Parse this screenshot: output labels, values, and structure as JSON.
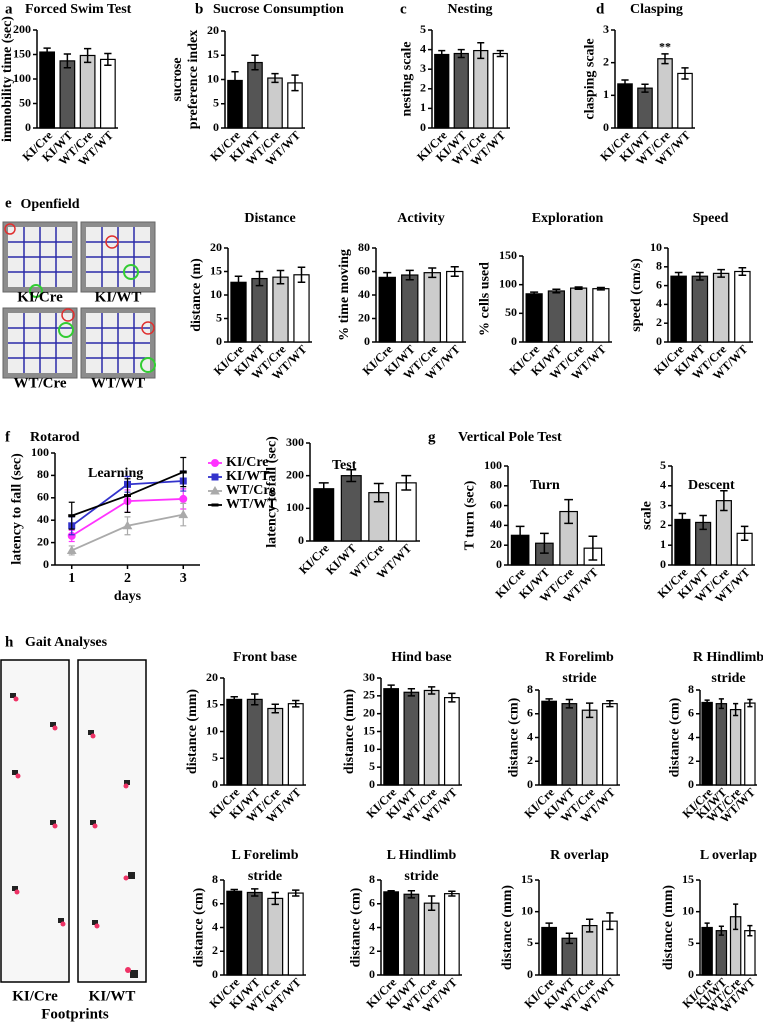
{
  "bar_colors": [
    "#000000",
    "#555555",
    "#cccccc",
    "#ffffff"
  ],
  "sections": [
    {
      "letter": "e",
      "title": "Openfield"
    },
    {
      "letter": "f",
      "title": "Rotarod"
    },
    {
      "letter": "g",
      "title": "Vertical Pole Test"
    },
    {
      "letter": "h",
      "title": "Gait Analyses"
    }
  ],
  "openfield_labels": [
    "KI/Cre",
    "KI/WT",
    "WT/Cre",
    "WT/WT"
  ],
  "footprints": {
    "labels": [
      "KI/Cre",
      "KI/WT"
    ],
    "caption": "Footprints"
  },
  "chart_data": [
    {
      "type": "bar",
      "panel": "a",
      "title": "Forced Swim Test",
      "ylabel": "immobility time (sec)",
      "categories": [
        "KI/Cre",
        "KI/WT",
        "WT/Cre",
        "WT/WT"
      ],
      "values": [
        155,
        137,
        148,
        140
      ],
      "errors": [
        8,
        14,
        14,
        12
      ],
      "ylim": [
        0,
        200
      ],
      "yticks": [
        0,
        50,
        100,
        150,
        200
      ]
    },
    {
      "type": "bar",
      "panel": "b",
      "title": "Sucrose Consumption",
      "ylabel": [
        "sucrose",
        "preference index"
      ],
      "categories": [
        "KI/Cre",
        "KI/WT",
        "WT/Cre",
        "WT/WT"
      ],
      "values": [
        9.8,
        13.5,
        10.3,
        9.3
      ],
      "errors": [
        1.8,
        1.5,
        0.9,
        1.6
      ],
      "ylim": [
        0,
        20
      ],
      "yticks": [
        0,
        5,
        10,
        15,
        20
      ]
    },
    {
      "type": "bar",
      "panel": "c",
      "title": "Nesting",
      "ylabel": "nesting scale",
      "categories": [
        "KI/Cre",
        "KI/WT",
        "WT/Cre",
        "WT/WT"
      ],
      "values": [
        3.75,
        3.8,
        3.95,
        3.8
      ],
      "errors": [
        0.2,
        0.2,
        0.4,
        0.15
      ],
      "ylim": [
        0,
        5
      ],
      "yticks": [
        0,
        1,
        2,
        3,
        4,
        5
      ]
    },
    {
      "type": "bar",
      "panel": "d",
      "title": "Clasping",
      "ylabel": "clasping scale",
      "categories": [
        "KI/Cre",
        "KI/WT",
        "WT/Cre",
        "WT/WT"
      ],
      "values": [
        1.35,
        1.22,
        2.12,
        1.67
      ],
      "errors": [
        0.12,
        0.12,
        0.15,
        0.17
      ],
      "ylim": [
        0,
        3
      ],
      "yticks": [
        0,
        1,
        2,
        3
      ],
      "annotations": [
        {
          "category": "WT/Cre",
          "text": "**"
        }
      ]
    },
    {
      "type": "bar",
      "title": "Distance",
      "ylabel": "distance (m)",
      "categories": [
        "KI/Cre",
        "KI/WT",
        "WT/Cre",
        "WT/WT"
      ],
      "values": [
        12.7,
        13.5,
        13.8,
        14.3
      ],
      "errors": [
        1.3,
        1.5,
        1.4,
        1.6
      ],
      "ylim": [
        0,
        20
      ],
      "yticks": [
        0,
        5,
        10,
        15,
        20
      ]
    },
    {
      "type": "bar",
      "title": "Activity",
      "ylabel": "% time moving",
      "categories": [
        "KI/Cre",
        "KI/WT",
        "WT/Cre",
        "WT/WT"
      ],
      "values": [
        55,
        57,
        59,
        60
      ],
      "errors": [
        4,
        4,
        4,
        4
      ],
      "ylim": [
        0,
        80
      ],
      "yticks": [
        0,
        20,
        40,
        60,
        80
      ]
    },
    {
      "type": "bar",
      "title": "Exploration",
      "ylabel": "% cells used",
      "categories": [
        "KI/Cre",
        "KI/WT",
        "WT/Cre",
        "WT/WT"
      ],
      "values": [
        84,
        89,
        94,
        93
      ],
      "errors": [
        3,
        3,
        2,
        2
      ],
      "ylim": [
        0,
        150
      ],
      "yticks": [
        0,
        50,
        100,
        150
      ]
    },
    {
      "type": "bar",
      "title": "Speed",
      "ylabel": "speed (cm/s)",
      "categories": [
        "KI/Cre",
        "KI/WT",
        "WT/Cre",
        "WT/WT"
      ],
      "values": [
        7,
        7,
        7.3,
        7.5
      ],
      "errors": [
        0.4,
        0.4,
        0.4,
        0.4
      ],
      "ylim": [
        0,
        10
      ],
      "yticks": [
        0,
        2,
        4,
        6,
        8,
        10
      ]
    },
    {
      "type": "line",
      "title": "Learning",
      "ylabel": "latency to fall (sec)",
      "xlabel": "days",
      "x": [
        1,
        2,
        3
      ],
      "xlim": [
        0.7,
        3.3
      ],
      "xticks": [
        1,
        2,
        3
      ],
      "ylim": [
        0,
        100
      ],
      "yticks": [
        0,
        20,
        40,
        60,
        80,
        100
      ],
      "series": [
        {
          "name": "KI/Cre",
          "color": "#ff33ff",
          "marker": "circle",
          "values": [
            26,
            57,
            59
          ],
          "errors": [
            5,
            10,
            9
          ]
        },
        {
          "name": "KI/WT",
          "color": "#3333cc",
          "marker": "square",
          "values": [
            35,
            72,
            75
          ],
          "errors": [
            8,
            7,
            9
          ]
        },
        {
          "name": "WT/Cre",
          "color": "#aaaaaa",
          "marker": "triangle",
          "values": [
            13,
            35,
            45
          ],
          "errors": [
            4,
            8,
            10
          ]
        },
        {
          "name": "WT/WT",
          "color": "#000000",
          "marker": "dash",
          "values": [
            44,
            62,
            83
          ],
          "errors": [
            12,
            15,
            13
          ]
        }
      ]
    },
    {
      "type": "bar",
      "title": "Test",
      "ylabel": "latency to fall (sec)",
      "categories": [
        "KI/Cre",
        "KI/WT",
        "WT/Cre",
        "WT/WT"
      ],
      "values": [
        160,
        200,
        148,
        178
      ],
      "errors": [
        18,
        18,
        28,
        22
      ],
      "ylim": [
        0,
        300
      ],
      "yticks": [
        0,
        100,
        200,
        300
      ]
    },
    {
      "type": "bar",
      "title": "Turn",
      "ylabel": "T turn (sec)",
      "categories": [
        "KI/Cre",
        "KI/WT",
        "WT/Cre",
        "WT/WT"
      ],
      "values": [
        30,
        22,
        54,
        17
      ],
      "errors": [
        9,
        10,
        12,
        12
      ],
      "ylim": [
        0,
        100
      ],
      "yticks": [
        0,
        20,
        40,
        60,
        80,
        100
      ]
    },
    {
      "type": "bar",
      "title": "Descent",
      "ylabel": "scale",
      "categories": [
        "KI/Cre",
        "KI/WT",
        "WT/Cre",
        "WT/WT"
      ],
      "values": [
        2.3,
        2.15,
        3.25,
        1.6
      ],
      "errors": [
        0.3,
        0.35,
        0.5,
        0.35
      ],
      "ylim": [
        0,
        5
      ],
      "yticks": [
        0,
        1,
        2,
        3,
        4,
        5
      ]
    },
    {
      "type": "bar",
      "title": "Front base",
      "ylabel": "distance (mm)",
      "categories": [
        "KI/Cre",
        "KI/WT",
        "WT/Cre",
        "WT/WT"
      ],
      "values": [
        16,
        16,
        14.3,
        15.2
      ],
      "errors": [
        0.5,
        1,
        0.8,
        0.6
      ],
      "ylim": [
        0,
        20
      ],
      "yticks": [
        0,
        5,
        10,
        15,
        20
      ]
    },
    {
      "type": "bar",
      "title": "Hind base",
      "ylabel": "distance (mm)",
      "categories": [
        "KI/Cre",
        "KI/WT",
        "WT/Cre",
        "WT/WT"
      ],
      "values": [
        27,
        26,
        26.5,
        24.5
      ],
      "errors": [
        1,
        1,
        1,
        1.2
      ],
      "ylim": [
        0,
        30
      ],
      "yticks": [
        0,
        5,
        10,
        15,
        20,
        25,
        30
      ]
    },
    {
      "type": "bar",
      "title": [
        "R Forelimb",
        "stride"
      ],
      "ylabel": "distance (cm)",
      "categories": [
        "KI/Cre",
        "KI/WT",
        "WT/Cre",
        "WT/WT"
      ],
      "values": [
        7.05,
        6.85,
        6.3,
        6.85
      ],
      "errors": [
        0.2,
        0.35,
        0.6,
        0.25
      ],
      "ylim": [
        0,
        8
      ],
      "yticks": [
        0,
        2,
        4,
        6,
        8
      ]
    },
    {
      "type": "bar",
      "title": [
        "R Hindlimb",
        "stride"
      ],
      "ylabel": "distance (cm)",
      "categories": [
        "KI/Cre",
        "KI/WT",
        "WT/Cre",
        "WT/WT"
      ],
      "values": [
        6.95,
        6.85,
        6.35,
        6.9
      ],
      "errors": [
        0.2,
        0.4,
        0.5,
        0.3
      ],
      "ylim": [
        0,
        8
      ],
      "yticks": [
        0,
        2,
        4,
        6,
        8
      ]
    },
    {
      "type": "bar",
      "title": [
        "L Forelimb",
        "stride"
      ],
      "ylabel": "distance (cm)",
      "categories": [
        "KI/Cre",
        "KI/WT",
        "WT/Cre",
        "WT/WT"
      ],
      "values": [
        7.05,
        6.95,
        6.45,
        6.9
      ],
      "errors": [
        0.15,
        0.3,
        0.5,
        0.25
      ],
      "ylim": [
        0,
        8
      ],
      "yticks": [
        0,
        2,
        4,
        6,
        8
      ]
    },
    {
      "type": "bar",
      "title": [
        "L Hindlimb",
        "stride"
      ],
      "ylabel": "distance (cm)",
      "categories": [
        "KI/Cre",
        "KI/WT",
        "WT/Cre",
        "WT/WT"
      ],
      "values": [
        7.0,
        6.8,
        6.05,
        6.85
      ],
      "errors": [
        0.1,
        0.3,
        0.6,
        0.2
      ],
      "ylim": [
        0,
        8
      ],
      "yticks": [
        0,
        2,
        4,
        6,
        8
      ]
    },
    {
      "type": "bar",
      "title": "R overlap",
      "ylabel": "distance (mm)",
      "categories": [
        "KI/Cre",
        "KI/WT",
        "WT/Cre",
        "WT/WT"
      ],
      "values": [
        7.5,
        5.8,
        7.8,
        8.5
      ],
      "errors": [
        0.7,
        0.8,
        1.0,
        1.3
      ],
      "ylim": [
        0,
        15
      ],
      "yticks": [
        0,
        5,
        10,
        15
      ]
    },
    {
      "type": "bar",
      "title": "L overlap",
      "ylabel": "distance (mm)",
      "categories": [
        "KI/Cre",
        "KI/WT",
        "WT/Cre",
        "WT/WT"
      ],
      "values": [
        7.5,
        7.0,
        9.2,
        7.0
      ],
      "errors": [
        0.7,
        0.7,
        2.0,
        0.8
      ],
      "ylim": [
        0,
        15
      ],
      "yticks": [
        0,
        5,
        10,
        15
      ]
    }
  ]
}
